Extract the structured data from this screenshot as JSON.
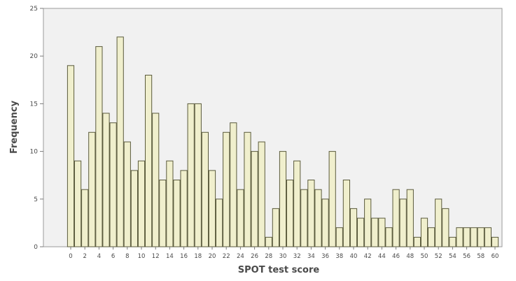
{
  "chart_data": {
    "type": "bar",
    "title": "",
    "xlabel": "SPOT test score",
    "ylabel": "Frequency",
    "ylim": [
      0,
      25
    ],
    "yticks": [
      0,
      5,
      10,
      15,
      20,
      25
    ],
    "xlim": [
      0,
      60
    ],
    "xtick_labels": [
      "0",
      "2",
      "4",
      "6",
      "8",
      "10",
      "12",
      "14",
      "16",
      "18",
      "20",
      "22",
      "24",
      "26",
      "28",
      "30",
      "32",
      "34",
      "36",
      "38",
      "40",
      "42",
      "44",
      "46",
      "48",
      "50",
      "52",
      "54",
      "56",
      "58",
      "60"
    ],
    "categories": [
      0,
      1,
      2,
      3,
      4,
      5,
      6,
      7,
      8,
      9,
      10,
      11,
      12,
      13,
      14,
      15,
      16,
      17,
      18,
      19,
      20,
      21,
      22,
      23,
      24,
      25,
      26,
      27,
      28,
      29,
      30,
      31,
      32,
      33,
      34,
      35,
      36,
      37,
      38,
      39,
      40,
      41,
      42,
      43,
      44,
      45,
      46,
      47,
      48,
      49,
      50,
      51,
      52,
      53,
      54,
      55,
      56,
      57,
      58,
      59,
      60
    ],
    "values": [
      19,
      9,
      6,
      12,
      21,
      14,
      13,
      22,
      11,
      8,
      9,
      18,
      14,
      7,
      9,
      7,
      8,
      15,
      15,
      12,
      8,
      5,
      12,
      13,
      6,
      12,
      10,
      11,
      1,
      4,
      10,
      7,
      9,
      6,
      7,
      6,
      5,
      10,
      2,
      7,
      4,
      3,
      5,
      3,
      3,
      2,
      6,
      5,
      6,
      1,
      3,
      2,
      5,
      4,
      1,
      2,
      2,
      2,
      2,
      2,
      1
    ],
    "grid": false,
    "colors": {
      "bar_fill": "#f0efcd",
      "bar_stroke": "#5a5a3c",
      "plot_background": "#f1f1f1",
      "axis": "#7a7a7a",
      "text": "#4a4a4a"
    }
  }
}
